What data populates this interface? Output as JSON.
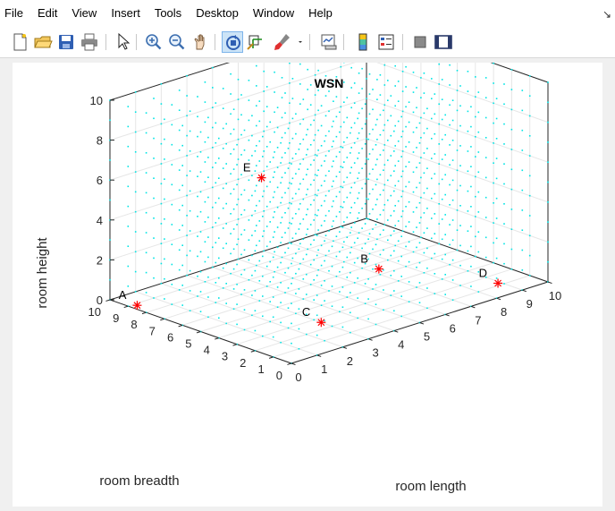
{
  "menu": {
    "items": [
      "File",
      "Edit",
      "View",
      "Insert",
      "Tools",
      "Desktop",
      "Window",
      "Help"
    ],
    "dock_arrow": "↘"
  },
  "toolbar": {
    "buttons": [
      {
        "name": "new-figure-icon"
      },
      {
        "name": "open-file-icon"
      },
      {
        "name": "save-figure-icon"
      },
      {
        "name": "print-figure-icon"
      },
      {
        "name": "edit-plot-pointer-icon"
      },
      {
        "name": "zoom-in-icon"
      },
      {
        "name": "zoom-out-icon"
      },
      {
        "name": "pan-hand-icon"
      },
      {
        "name": "rotate-3d-icon",
        "active": true
      },
      {
        "name": "data-cursor-icon"
      },
      {
        "name": "brush-icon"
      },
      {
        "name": "brush-dropdown-icon"
      },
      {
        "name": "link-plot-icon"
      },
      {
        "name": "insert-colorbar-icon"
      },
      {
        "name": "insert-legend-icon"
      },
      {
        "name": "hide-plot-tools-icon"
      },
      {
        "name": "show-plot-tools-icon"
      }
    ]
  },
  "colors": {
    "grid_dots": "#00e5e5",
    "nodes": "#ff0000",
    "axis": "#262626",
    "grid": "#e6e6e6"
  },
  "chart_data": {
    "type": "scatter",
    "projection": "3d",
    "title": "WSN",
    "xlabel": "room length",
    "ylabel": "room breadth",
    "zlabel": "room height",
    "xlim": [
      0,
      10
    ],
    "ylim": [
      0,
      10
    ],
    "zlim": [
      0,
      10
    ],
    "xticks": [
      "0",
      "1",
      "2",
      "3",
      "4",
      "5",
      "6",
      "7",
      "8",
      "9",
      "10"
    ],
    "yticks": [
      "0",
      "1",
      "2",
      "3",
      "4",
      "5",
      "6",
      "7",
      "8",
      "9",
      "10"
    ],
    "zticks": [
      "0",
      "2",
      "4",
      "6",
      "8",
      "10"
    ],
    "grid": true,
    "series": [
      {
        "marker": "dot",
        "grid_spacing": 1,
        "x_range": [
          0,
          10
        ],
        "y_range": [
          0,
          10
        ],
        "z_range": [
          0,
          10
        ]
      },
      {
        "marker": "asterisk",
        "points": [
          {
            "label": "A",
            "x": 0.0,
            "y": 8.5,
            "z": 0.2
          },
          {
            "label": "B",
            "x": 7.3,
            "y": 5.5,
            "z": 0.0
          },
          {
            "label": "C",
            "x": 3.0,
            "y": 2.6,
            "z": 0.0
          },
          {
            "label": "D",
            "x": 8.9,
            "y": 1.2,
            "z": 0.0
          },
          {
            "label": "E",
            "x": 2.3,
            "y": 4.9,
            "z": 6.8
          }
        ]
      }
    ]
  }
}
